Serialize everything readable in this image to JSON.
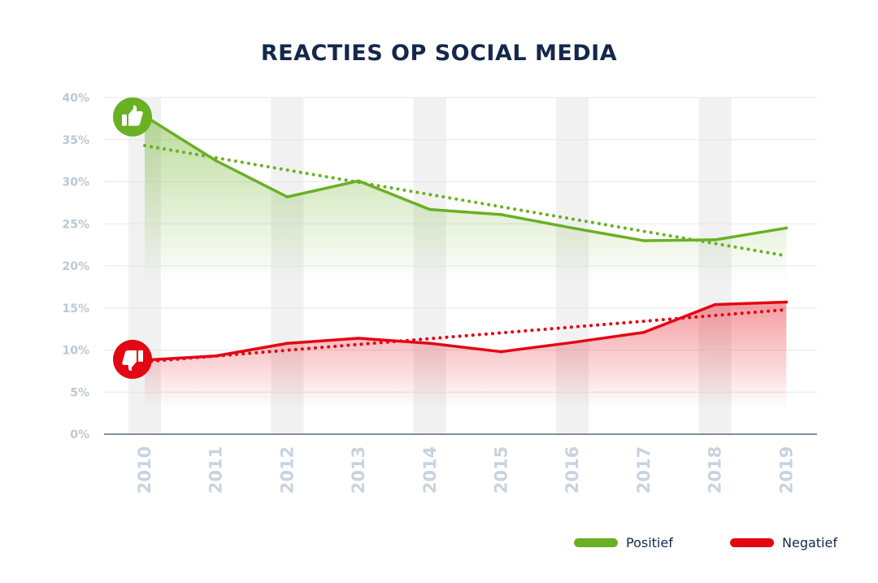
{
  "chart_data": {
    "type": "line",
    "title": "REACTIES OP SOCIAL MEDIA",
    "categories": [
      "2010",
      "2011",
      "2012",
      "2013",
      "2014",
      "2015",
      "2016",
      "2017",
      "2018",
      "2019"
    ],
    "y_ticks": [
      "0%",
      "5%",
      "10%",
      "15%",
      "20%",
      "25%",
      "30%",
      "35%",
      "40%"
    ],
    "ylim": [
      0,
      40
    ],
    "series": [
      {
        "name": "Positief",
        "color": "#6ab023",
        "values": [
          37.8,
          32.5,
          28.2,
          30.1,
          26.7,
          26.1,
          24.5,
          23.0,
          23.1,
          24.5
        ],
        "trend": [
          34.3,
          21.2
        ],
        "icon": "thumbs-up-icon"
      },
      {
        "name": "Negatief",
        "color": "#e30613",
        "values": [
          8.8,
          9.3,
          10.8,
          11.4,
          10.8,
          9.8,
          10.9,
          12.1,
          15.4,
          15.7
        ],
        "trend": [
          8.6,
          14.8
        ],
        "icon": "thumbs-down-icon"
      }
    ],
    "grid": true,
    "legend_position": "bottom-right"
  }
}
